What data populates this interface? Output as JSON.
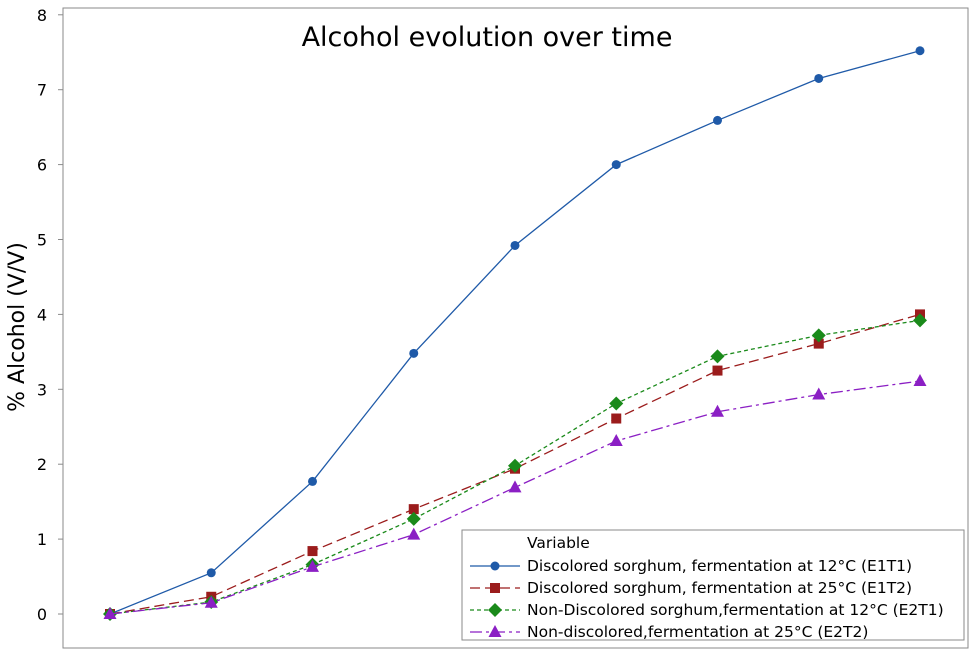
{
  "chart_data": {
    "type": "line",
    "title": "Alcohol evolution over time",
    "xlabel": "",
    "ylabel": "% Alcohol (V/V)",
    "ylim": [
      -0.1,
      8
    ],
    "y_ticks": [
      0,
      1,
      2,
      3,
      4,
      5,
      6,
      7,
      8
    ],
    "x": [
      1,
      2,
      3,
      4,
      5,
      6,
      7,
      8,
      9
    ],
    "grid": false,
    "legend_title": "Variable",
    "legend_position": "bottom-right",
    "series": [
      {
        "name": "Discolored sorghum, fermentation at 12°C (E1T1)",
        "color": "#1f5aa8",
        "marker": "circle",
        "dash": "solid",
        "values": [
          0.0,
          0.55,
          1.77,
          3.48,
          4.92,
          6.0,
          6.59,
          7.15,
          7.52
        ]
      },
      {
        "name": "Discolored sorghum, fermentation at 25°C (E1T2)",
        "color": "#9b1c1c",
        "marker": "square",
        "dash": "dashed",
        "values": [
          0.0,
          0.23,
          0.84,
          1.4,
          1.94,
          2.61,
          3.25,
          3.61,
          4.0
        ]
      },
      {
        "name": "Non-Discolored sorghum,fermentation at 12°C (E2T1)",
        "color": "#1a8a1a",
        "marker": "diamond",
        "dash": "dotted",
        "values": [
          0.0,
          0.16,
          0.66,
          1.27,
          1.98,
          2.81,
          3.44,
          3.72,
          3.92
        ]
      },
      {
        "name": "Non-discolored,fermentation at 25°C (E2T2)",
        "color": "#8b1fc4",
        "marker": "triangle",
        "dash": "dashdot",
        "values": [
          0.0,
          0.15,
          0.63,
          1.06,
          1.69,
          2.31,
          2.7,
          2.93,
          3.11
        ]
      }
    ]
  }
}
